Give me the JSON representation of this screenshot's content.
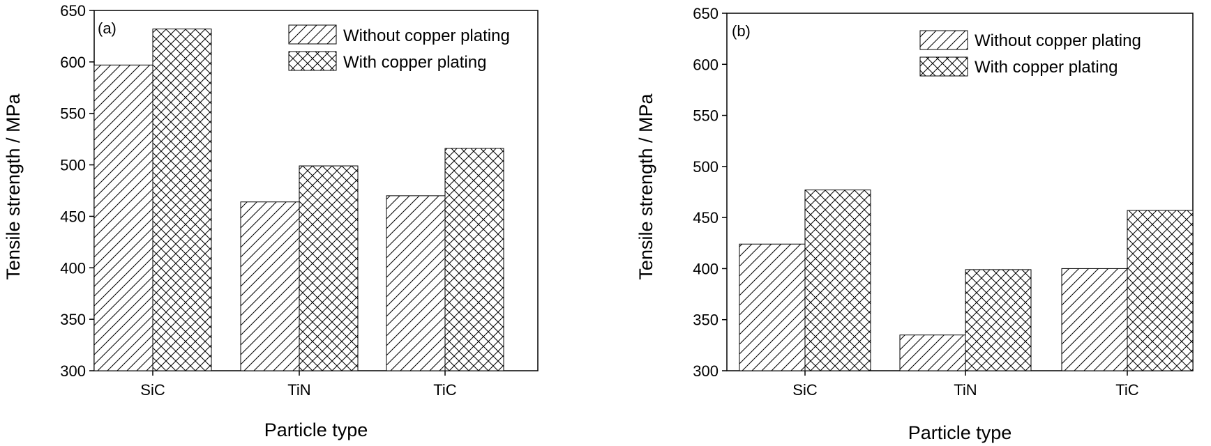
{
  "chart_data": [
    {
      "type": "bar",
      "panel_label": "(a)",
      "categories": [
        "SiC",
        "TiN",
        "TiC"
      ],
      "series": [
        {
          "name": "Without copper plating",
          "pattern": "diagonal-hatch",
          "values": [
            597,
            464,
            470
          ]
        },
        {
          "name": "With copper plating",
          "pattern": "cross-hatch",
          "values": [
            632,
            499,
            516
          ]
        }
      ],
      "xlabel": "Particle type",
      "ylabel": "Tensile strength / MPa",
      "ylim": [
        300,
        650
      ],
      "yticks": [
        "300",
        "350",
        "400",
        "450",
        "500",
        "550",
        "600",
        "650"
      ],
      "grid": false,
      "legend_position": "top-right",
      "bar_color": "#ffffff",
      "line_color": "#000000"
    },
    {
      "type": "bar",
      "panel_label": "(b)",
      "categories": [
        "SiC",
        "TiN",
        "TiC"
      ],
      "series": [
        {
          "name": "Without copper plating",
          "pattern": "diagonal-hatch",
          "values": [
            424,
            335,
            400
          ]
        },
        {
          "name": "With copper plating",
          "pattern": "cross-hatch",
          "values": [
            477,
            399,
            457
          ]
        }
      ],
      "xlabel": "Particle type",
      "ylabel": "Tensile strength / MPa",
      "ylim": [
        300,
        650
      ],
      "yticks": [
        "300",
        "350",
        "400",
        "450",
        "500",
        "550",
        "600",
        "650"
      ],
      "grid": false,
      "legend_position": "top-right",
      "bar_color": "#ffffff",
      "line_color": "#000000"
    }
  ]
}
